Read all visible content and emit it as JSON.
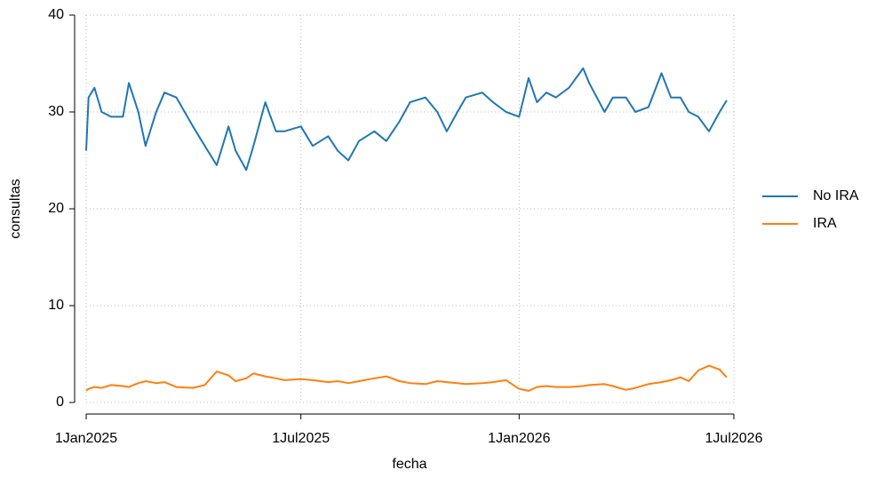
{
  "chart_data": {
    "type": "line",
    "x_label": "fecha",
    "y_label": "consultas",
    "x": [
      "2025-01-01",
      "2025-01-03",
      "2025-01-08",
      "2025-01-14",
      "2025-01-22",
      "2025-02-01",
      "2025-02-06",
      "2025-02-14",
      "2025-02-20",
      "2025-03-01",
      "2025-03-08",
      "2025-03-18",
      "2025-04-01",
      "2025-04-11",
      "2025-04-21",
      "2025-05-01",
      "2025-05-07",
      "2025-05-16",
      "2025-05-22",
      "2025-06-01",
      "2025-06-10",
      "2025-06-17",
      "2025-07-01",
      "2025-07-11",
      "2025-07-24",
      "2025-08-01",
      "2025-08-10",
      "2025-08-19",
      "2025-09-01",
      "2025-09-11",
      "2025-09-22",
      "2025-10-01",
      "2025-10-14",
      "2025-10-24",
      "2025-11-01",
      "2025-11-10",
      "2025-11-17",
      "2025-12-01",
      "2025-12-10",
      "2025-12-21",
      "2026-01-01",
      "2026-01-09",
      "2026-01-16",
      "2026-01-24",
      "2026-02-01",
      "2026-02-12",
      "2026-02-24",
      "2026-03-01",
      "2026-03-14",
      "2026-03-21",
      "2026-04-01",
      "2026-04-09",
      "2026-04-20",
      "2026-05-01",
      "2026-05-09",
      "2026-05-17",
      "2026-05-24",
      "2026-06-01",
      "2026-06-10",
      "2026-06-19",
      "2026-06-25"
    ],
    "series": [
      {
        "name": "No IRA",
        "color": "#1f77b4",
        "values": [
          26,
          31.5,
          32.5,
          30,
          29.5,
          29.5,
          33,
          30,
          26.5,
          30,
          32,
          31.5,
          28.5,
          26.5,
          24.5,
          28.5,
          26,
          24,
          26.5,
          31,
          28,
          28,
          28.5,
          26.5,
          27.5,
          26,
          25,
          27,
          28,
          27,
          29,
          31,
          31.5,
          30,
          28,
          30,
          31.5,
          32,
          31,
          30,
          29.5,
          33.5,
          31,
          32,
          31.5,
          32.5,
          34.5,
          33,
          30,
          31.5,
          31.5,
          30,
          30.5,
          34,
          31.5,
          31.5,
          30,
          29.5,
          28,
          30,
          31.2
        ]
      },
      {
        "name": "IRA",
        "color": "#ff7f0e",
        "values": [
          1.2,
          1.4,
          1.6,
          1.5,
          1.8,
          1.7,
          1.6,
          2.0,
          2.2,
          2.0,
          2.1,
          1.6,
          1.5,
          1.8,
          3.2,
          2.8,
          2.2,
          2.5,
          3.0,
          2.7,
          2.5,
          2.3,
          2.4,
          2.3,
          2.1,
          2.2,
          2.0,
          2.2,
          2.5,
          2.7,
          2.2,
          2.0,
          1.9,
          2.2,
          2.1,
          2.0,
          1.9,
          2.0,
          2.1,
          2.3,
          1.4,
          1.2,
          1.6,
          1.7,
          1.6,
          1.6,
          1.7,
          1.8,
          1.9,
          1.7,
          1.3,
          1.5,
          1.9,
          2.1,
          2.3,
          2.6,
          2.2,
          3.3,
          3.8,
          3.4,
          2.6
        ]
      }
    ],
    "xlim": [
      "2025-01-01",
      "2026-07-01"
    ],
    "xticks": [
      {
        "value": "2025-01-01",
        "label": "1Jan2025"
      },
      {
        "value": "2025-07-01",
        "label": "1Jul2025"
      },
      {
        "value": "2026-01-01",
        "label": "1Jan2026"
      },
      {
        "value": "2026-07-01",
        "label": "1Jul2026"
      }
    ],
    "ylim": [
      0,
      40
    ],
    "yticks": [
      0,
      10,
      20,
      30,
      40
    ],
    "grid": true,
    "legend": "right"
  }
}
